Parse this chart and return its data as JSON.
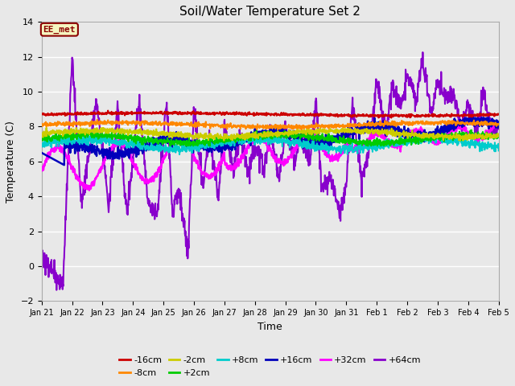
{
  "title": "Soil/Water Temperature Set 2",
  "xlabel": "Time",
  "ylabel": "Temperature (C)",
  "ylim": [
    -2,
    14
  ],
  "yticks": [
    -2,
    0,
    2,
    4,
    6,
    8,
    10,
    12,
    14
  ],
  "bg_color": "#e8e8e8",
  "annotation_text": "EE_met",
  "annotation_bg": "#f5f5c0",
  "annotation_border": "#8b0000",
  "series": {
    "-16cm": {
      "color": "#cc0000",
      "lw": 1.5
    },
    "-8cm": {
      "color": "#ff8800",
      "lw": 1.5
    },
    "-2cm": {
      "color": "#cccc00",
      "lw": 1.5
    },
    "+2cm": {
      "color": "#00cc00",
      "lw": 1.5
    },
    "+8cm": {
      "color": "#00cccc",
      "lw": 1.5
    },
    "+16cm": {
      "color": "#0000bb",
      "lw": 1.8
    },
    "+32cm": {
      "color": "#ff00ff",
      "lw": 1.8
    },
    "+64cm": {
      "color": "#8800cc",
      "lw": 1.5
    }
  },
  "xtick_labels": [
    "Jan 21",
    "Jan 22",
    "Jan 23",
    "Jan 24",
    "Jan 25",
    "Jan 26",
    "Jan 27",
    "Jan 28",
    "Jan 29",
    "Jan 30",
    "Jan 31",
    "Feb 1",
    "Feb 2",
    "Feb 3",
    "Feb 4",
    "Feb 5"
  ]
}
